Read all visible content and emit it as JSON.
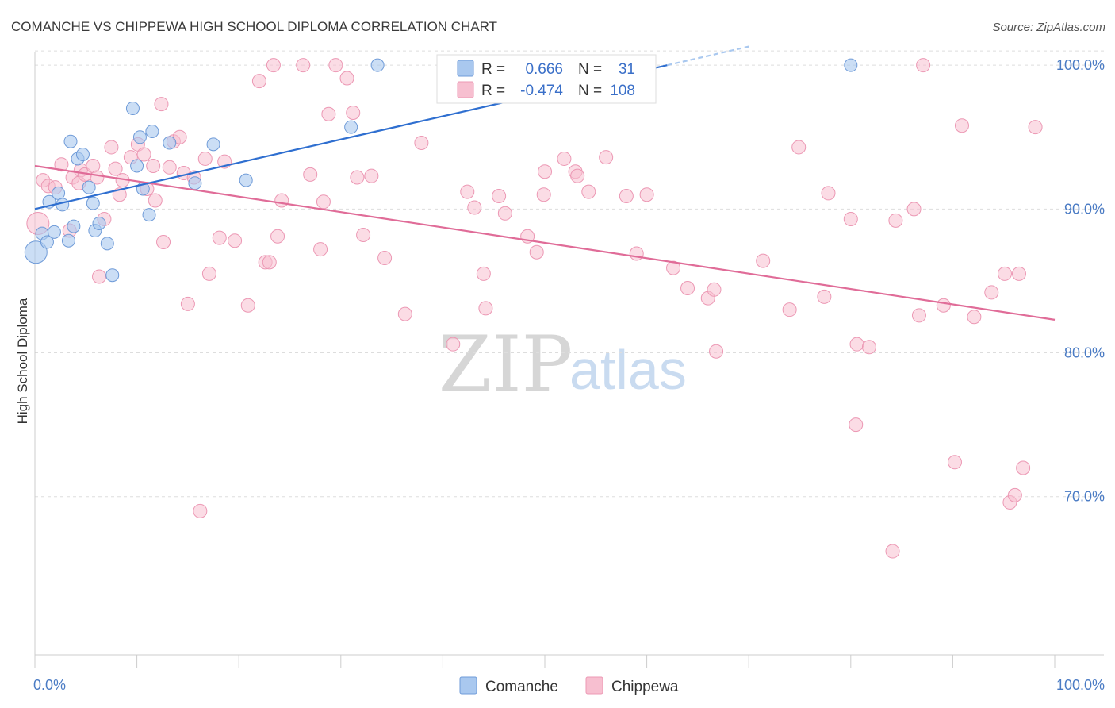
{
  "title": "COMANCHE VS CHIPPEWA HIGH SCHOOL DIPLOMA CORRELATION CHART",
  "source": "Source: ZipAtlas.com",
  "watermark": {
    "zip": "ZIP",
    "atlas": "atlas"
  },
  "legend_top": {
    "rows": [
      {
        "r_label": "R =",
        "r_value": "0.666",
        "n_label": "N =",
        "n_value": "31"
      },
      {
        "r_label": "R =",
        "r_value": "-0.474",
        "n_label": "N =",
        "n_value": "108"
      }
    ]
  },
  "colors": {
    "comanche_fill": "#a9c8ef",
    "comanche_stroke": "#6f9bd8",
    "comanche_line": "#2f6fd0",
    "chippewa_fill": "#f7bfd0",
    "chippewa_stroke": "#ec98b4",
    "chippewa_line": "#e06c98",
    "grid": "#dddddd",
    "axis_text": "#4a7bc4"
  },
  "chart_data": {
    "type": "scatter",
    "title": "COMANCHE VS CHIPPEWA HIGH SCHOOL DIPLOMA CORRELATION CHART",
    "xlabel": "",
    "ylabel": "High School Diploma",
    "xlim": [
      0,
      100
    ],
    "ylim": [
      59,
      101.5
    ],
    "x_tick_labels": [
      "0.0%",
      "100.0%"
    ],
    "y_ticks": [
      70,
      80,
      90,
      100
    ],
    "y_tick_labels": [
      "70.0%",
      "80.0%",
      "90.0%",
      "100.0%"
    ],
    "grid": true,
    "legend_placement": "bottom-center",
    "series": [
      {
        "name": "Comanche",
        "r": 0.666,
        "n": 31,
        "trend": {
          "x": [
            0,
            62
          ],
          "y": [
            90.0,
            100.0
          ]
        },
        "trend_dashed_extension": {
          "x": [
            62,
            70
          ],
          "y": [
            100.0,
            101.3
          ]
        },
        "points": [
          [
            0.1,
            87.0
          ],
          [
            0.7,
            88.3
          ],
          [
            1.2,
            87.7
          ],
          [
            1.4,
            90.5
          ],
          [
            1.9,
            88.4
          ],
          [
            2.3,
            91.1
          ],
          [
            2.7,
            90.3
          ],
          [
            3.3,
            87.8
          ],
          [
            3.5,
            94.7
          ],
          [
            3.8,
            88.8
          ],
          [
            4.2,
            93.5
          ],
          [
            4.7,
            93.8
          ],
          [
            5.3,
            91.5
          ],
          [
            5.7,
            90.4
          ],
          [
            5.9,
            88.5
          ],
          [
            6.3,
            89.0
          ],
          [
            7.1,
            87.6
          ],
          [
            7.6,
            85.4
          ],
          [
            9.6,
            97.0
          ],
          [
            10.0,
            93.0
          ],
          [
            10.3,
            95.0
          ],
          [
            10.6,
            91.4
          ],
          [
            11.2,
            89.6
          ],
          [
            11.5,
            95.4
          ],
          [
            13.2,
            94.6
          ],
          [
            15.7,
            91.8
          ],
          [
            17.5,
            94.5
          ],
          [
            20.7,
            92.0
          ],
          [
            31.0,
            95.7
          ],
          [
            33.6,
            100.0
          ],
          [
            80.0,
            100.0
          ]
        ]
      },
      {
        "name": "Chippewa",
        "r": -0.474,
        "n": 108,
        "trend": {
          "x": [
            0,
            100
          ],
          "y": [
            93.0,
            82.3
          ]
        },
        "points": [
          [
            0.3,
            89.0
          ],
          [
            0.8,
            92.0
          ],
          [
            1.3,
            91.6
          ],
          [
            2.0,
            91.5
          ],
          [
            2.6,
            93.1
          ],
          [
            3.4,
            88.5
          ],
          [
            3.7,
            92.2
          ],
          [
            4.3,
            91.8
          ],
          [
            4.5,
            92.7
          ],
          [
            4.9,
            92.4
          ],
          [
            5.7,
            93.0
          ],
          [
            6.1,
            92.2
          ],
          [
            6.3,
            85.3
          ],
          [
            6.8,
            89.3
          ],
          [
            7.5,
            94.3
          ],
          [
            7.9,
            92.8
          ],
          [
            8.3,
            91.0
          ],
          [
            8.6,
            92.0
          ],
          [
            9.4,
            93.6
          ],
          [
            10.1,
            94.5
          ],
          [
            10.7,
            93.8
          ],
          [
            11.0,
            91.4
          ],
          [
            11.6,
            93.0
          ],
          [
            11.8,
            90.6
          ],
          [
            12.4,
            97.3
          ],
          [
            12.6,
            87.7
          ],
          [
            13.2,
            92.9
          ],
          [
            13.6,
            94.7
          ],
          [
            14.2,
            95.0
          ],
          [
            14.6,
            92.5
          ],
          [
            15.0,
            83.4
          ],
          [
            15.6,
            92.2
          ],
          [
            16.2,
            69.0
          ],
          [
            16.7,
            93.5
          ],
          [
            17.1,
            85.5
          ],
          [
            18.1,
            88.0
          ],
          [
            18.6,
            93.3
          ],
          [
            19.6,
            87.8
          ],
          [
            20.9,
            83.3
          ],
          [
            22.0,
            98.9
          ],
          [
            22.6,
            86.3
          ],
          [
            23.0,
            86.3
          ],
          [
            23.4,
            100.0
          ],
          [
            23.8,
            88.1
          ],
          [
            24.2,
            90.6
          ],
          [
            26.3,
            100.0
          ],
          [
            27.0,
            92.4
          ],
          [
            28.0,
            87.2
          ],
          [
            28.3,
            90.5
          ],
          [
            28.8,
            96.6
          ],
          [
            29.5,
            100.0
          ],
          [
            30.6,
            99.1
          ],
          [
            31.2,
            96.7
          ],
          [
            31.6,
            92.2
          ],
          [
            32.2,
            88.2
          ],
          [
            33.0,
            92.3
          ],
          [
            34.3,
            86.6
          ],
          [
            36.3,
            82.7
          ],
          [
            37.9,
            94.6
          ],
          [
            41.0,
            80.6
          ],
          [
            42.4,
            91.2
          ],
          [
            43.1,
            90.1
          ],
          [
            44.0,
            85.5
          ],
          [
            44.2,
            83.1
          ],
          [
            45.5,
            90.9
          ],
          [
            46.1,
            89.7
          ],
          [
            48.3,
            88.1
          ],
          [
            49.2,
            87.0
          ],
          [
            49.9,
            91.0
          ],
          [
            50.0,
            92.6
          ],
          [
            51.9,
            93.5
          ],
          [
            53.0,
            92.6
          ],
          [
            53.2,
            92.3
          ],
          [
            54.3,
            91.2
          ],
          [
            56.0,
            93.6
          ],
          [
            58.0,
            90.9
          ],
          [
            59.0,
            86.9
          ],
          [
            62.6,
            85.9
          ],
          [
            64.0,
            84.5
          ],
          [
            66.0,
            83.8
          ],
          [
            66.6,
            84.4
          ],
          [
            66.8,
            80.1
          ],
          [
            71.4,
            86.4
          ],
          [
            74.0,
            83.0
          ],
          [
            74.9,
            94.3
          ],
          [
            77.4,
            83.9
          ],
          [
            77.8,
            91.1
          ],
          [
            80.0,
            89.3
          ],
          [
            80.5,
            75.0
          ],
          [
            80.6,
            80.6
          ],
          [
            81.8,
            80.4
          ],
          [
            84.1,
            66.2
          ],
          [
            84.4,
            89.2
          ],
          [
            86.2,
            90.0
          ],
          [
            86.7,
            82.6
          ],
          [
            87.1,
            100.0
          ],
          [
            89.1,
            83.3
          ],
          [
            90.2,
            72.4
          ],
          [
            90.9,
            95.8
          ],
          [
            92.1,
            82.5
          ],
          [
            93.8,
            84.2
          ],
          [
            95.1,
            85.5
          ],
          [
            95.6,
            69.6
          ],
          [
            96.1,
            70.1
          ],
          [
            96.5,
            85.5
          ],
          [
            96.9,
            72.0
          ],
          [
            98.1,
            95.7
          ],
          [
            60.0,
            91.0
          ]
        ]
      }
    ]
  }
}
